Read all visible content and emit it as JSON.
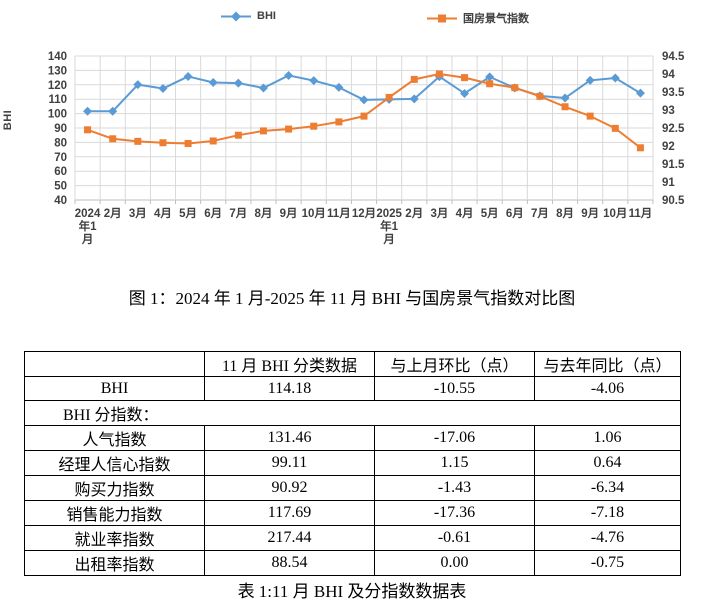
{
  "captions": {
    "figure": "图 1：2024 年 1 月-2025 年 11 月 BHI 与国房景气指数对比图",
    "table": "表 1:11 月 BHI 及分指数数据表"
  },
  "chart_data": {
    "type": "line",
    "legend_position": "top",
    "grid": true,
    "categories": [
      "2024年1月",
      "2月",
      "3月",
      "4月",
      "5月",
      "6月",
      "7月",
      "8月",
      "9月",
      "10月",
      "11月",
      "12月",
      "2025年1月",
      "2月",
      "3月",
      "4月",
      "5月",
      "6月",
      "7月",
      "8月",
      "9月",
      "10月",
      "11月"
    ],
    "series": [
      {
        "name": "BHI",
        "axis": "left",
        "color": "#5B9BD5",
        "marker": "diamond",
        "values": [
          101.6,
          101.6,
          120.1,
          117.4,
          125.8,
          121.6,
          121.2,
          117.8,
          126.5,
          122.9,
          118.24,
          109.5,
          109.9,
          110.2,
          125.7,
          114.0,
          125.5,
          117.8,
          112.3,
          110.8,
          123.1,
          124.73,
          114.18
        ]
      },
      {
        "name": "国房景气指数",
        "axis": "right",
        "color": "#ED7D31",
        "marker": "square",
        "values": [
          92.45,
          92.2,
          92.13,
          92.09,
          92.07,
          92.14,
          92.3,
          92.42,
          92.47,
          92.55,
          92.67,
          92.83,
          93.35,
          93.85,
          94.0,
          93.9,
          93.73,
          93.62,
          93.38,
          93.09,
          92.83,
          92.49,
          91.95
        ]
      }
    ],
    "left_axis": {
      "title": "BHI",
      "min": 40,
      "max": 140,
      "step": 10
    },
    "right_axis": {
      "min": 90.5,
      "max": 94.5,
      "step": 0.5
    }
  },
  "table": {
    "headers": [
      "",
      "11 月 BHI 分类数据",
      "与上月环比（点）",
      "与去年同比（点）"
    ],
    "rows": [
      {
        "cells": [
          "BHI",
          "114.18",
          "-10.55",
          "-4.06"
        ]
      },
      {
        "section": "BHI 分指数："
      },
      {
        "cells": [
          "人气指数",
          "131.46",
          "-17.06",
          "1.06"
        ]
      },
      {
        "cells": [
          "经理人信心指数",
          "99.11",
          "1.15",
          "0.64"
        ]
      },
      {
        "cells": [
          "购买力指数",
          "90.92",
          "-1.43",
          "-6.34"
        ]
      },
      {
        "cells": [
          "销售能力指数",
          "117.69",
          "-17.36",
          "-7.18"
        ]
      },
      {
        "cells": [
          "就业率指数",
          "217.44",
          "-0.61",
          "-4.76"
        ]
      },
      {
        "cells": [
          "出租率指数",
          "88.54",
          "0.00",
          "-0.75"
        ]
      }
    ]
  }
}
